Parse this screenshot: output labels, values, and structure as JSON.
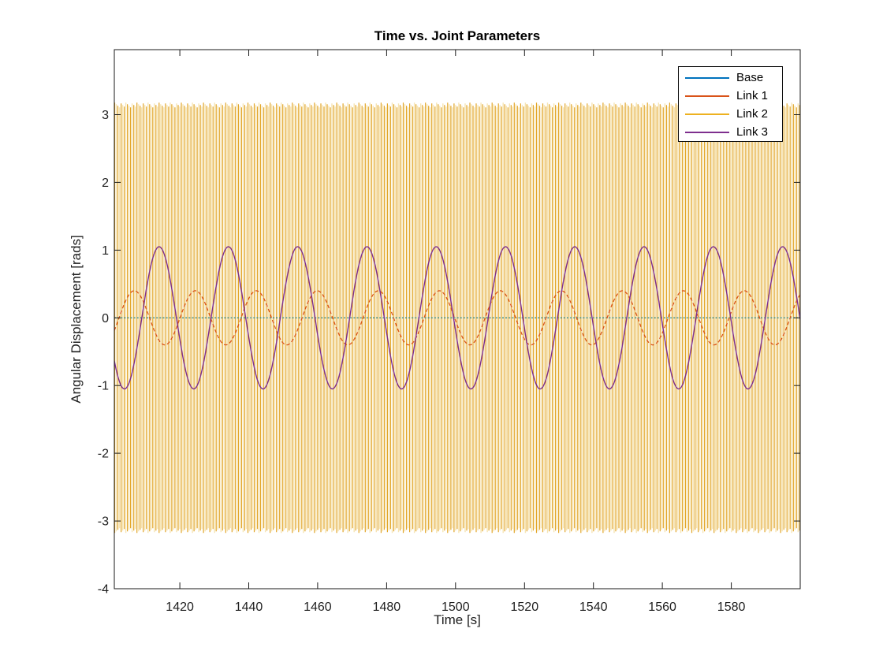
{
  "figure": {
    "title": "Time vs. Joint Parameters",
    "xlabel": "Time [s]",
    "ylabel": "Angular Displacement [rads]",
    "background_color": "#ffffff",
    "axis_color": "#1a1a1a",
    "text_color": "#1f1f1f"
  },
  "legend": {
    "position": "northeast",
    "items": [
      {
        "label": "Base",
        "color": "#0072BD"
      },
      {
        "label": "Link 1",
        "color": "#D95319"
      },
      {
        "label": "Link 2",
        "color": "#EDB120"
      },
      {
        "label": "Link 3",
        "color": "#7E2F8E"
      }
    ]
  },
  "chart_data": {
    "type": "line",
    "title": "Time vs. Joint Parameters",
    "xlabel": "Time [s]",
    "ylabel": "Angular Displacement [rads]",
    "xlim": [
      1401,
      1600
    ],
    "ylim": [
      -4,
      3.96
    ],
    "xticks": [
      1420,
      1440,
      1460,
      1480,
      1500,
      1520,
      1540,
      1560,
      1580
    ],
    "yticks": [
      -4,
      -3,
      -2,
      -1,
      0,
      1,
      2,
      3
    ],
    "grid": false,
    "legend_position": "northeast",
    "series": [
      {
        "name": "Base",
        "color": "#0072BD",
        "plot_color": "#2F8C91",
        "line_style": "dotted",
        "model": "constant",
        "value": 0
      },
      {
        "name": "Link 1",
        "color": "#D95319",
        "line_style": "dashed",
        "model": "sine",
        "amplitude": 0.4,
        "period_s": 17.7,
        "peak_time_s": 1406.8
      },
      {
        "name": "Link 2",
        "color": "#EDB120",
        "stripe_color_dark": "#E0A11E",
        "stripe_color_light": "#F4DFA6",
        "line_style": "solid",
        "model": "wrapped_fast_oscillation",
        "value_range": [
          -3.1416,
          3.1416
        ],
        "stripe_pitch_s": 0.92
      },
      {
        "name": "Link 3",
        "color": "#7E2F8E",
        "line_style": "solid",
        "model": "sine",
        "amplitude": 1.05,
        "period_s": 20.1,
        "peak_time_s": 1414.0
      }
    ]
  }
}
